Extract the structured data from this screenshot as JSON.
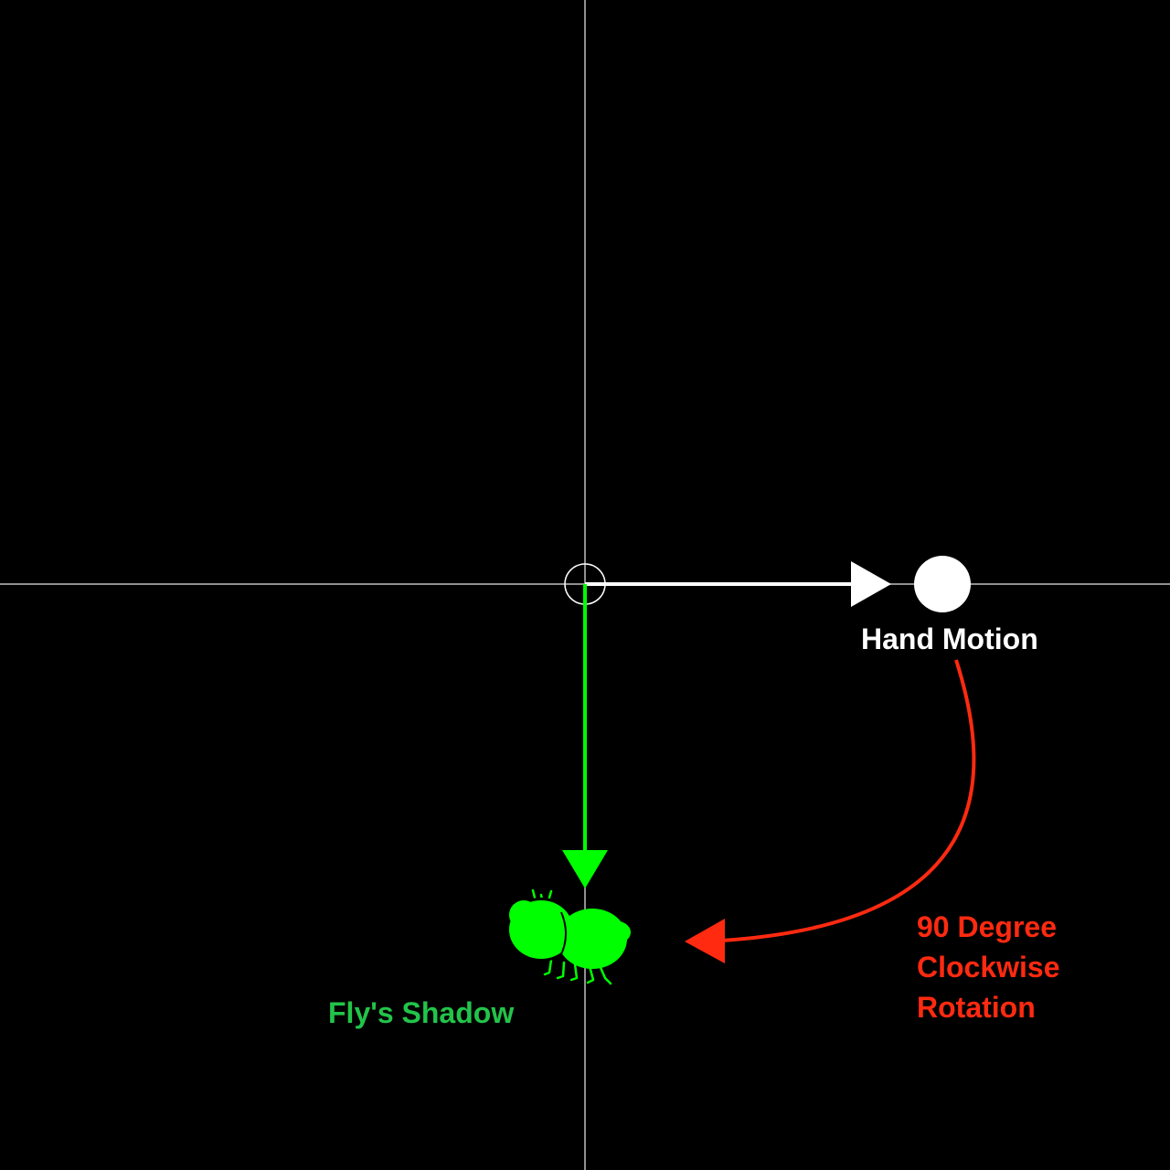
{
  "labels": {
    "hand_motion": "Hand Motion",
    "flys_shadow": "Fly's Shadow",
    "rotation_line1": "90 Degree",
    "rotation_line2": "Clockwise",
    "rotation_line3": "Rotation"
  },
  "colors": {
    "background": "#000000",
    "axes": "#bfbfbf",
    "hand": "#ffffff",
    "shadow": "#00ff00",
    "shadow_label": "#22c44a",
    "rotation": "#ff2a10"
  },
  "icons": {
    "origin": "circle-outline-icon",
    "hand": "filled-circle-icon",
    "fly": "fly-silhouette-icon"
  }
}
